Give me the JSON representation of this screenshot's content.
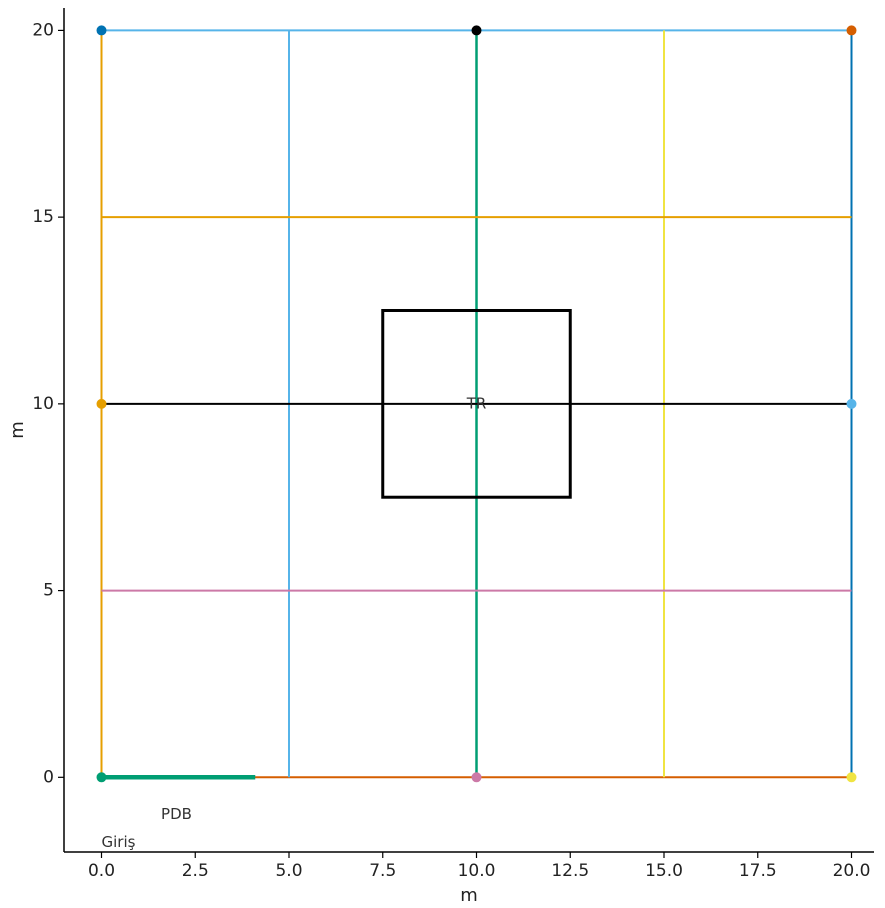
{
  "chart_data": {
    "type": "line",
    "title": "",
    "xlabel": "m",
    "ylabel": "m",
    "xlim": [
      -1.0,
      20.6
    ],
    "ylim": [
      -2.0,
      20.6
    ],
    "xticks": [
      "0.0",
      "2.5",
      "5.0",
      "7.5",
      "10.0",
      "12.5",
      "15.0",
      "17.5",
      "20.0"
    ],
    "yticks": [
      "0",
      "5",
      "10",
      "15",
      "20"
    ],
    "xtick_values": [
      0,
      2.5,
      5,
      7.5,
      10,
      12.5,
      15,
      17.5,
      20
    ],
    "ytick_values": [
      0,
      5,
      10,
      15,
      20
    ],
    "grid": false,
    "segments": [
      {
        "id": "top-line",
        "x": [
          0,
          20
        ],
        "y": [
          20,
          20
        ],
        "color": "#56B4E9",
        "width": 2
      },
      {
        "id": "left-line",
        "x": [
          0,
          0
        ],
        "y": [
          0,
          20
        ],
        "color": "#E69F00",
        "width": 2
      },
      {
        "id": "right-line",
        "x": [
          20,
          20
        ],
        "y": [
          0,
          20
        ],
        "color": "#0072B2",
        "width": 2
      },
      {
        "id": "bottom-line",
        "x": [
          0,
          20
        ],
        "y": [
          0,
          0
        ],
        "color": "#D55E00",
        "width": 2
      },
      {
        "id": "vertical-x5",
        "x": [
          5,
          5
        ],
        "y": [
          0,
          20
        ],
        "color": "#56B4E9",
        "width": 2
      },
      {
        "id": "vertical-x10",
        "x": [
          10,
          10
        ],
        "y": [
          0,
          20
        ],
        "color": "#009E73",
        "width": 2.5
      },
      {
        "id": "vertical-x15",
        "x": [
          15,
          15
        ],
        "y": [
          0,
          20
        ],
        "color": "#F0E442",
        "width": 2
      },
      {
        "id": "horizontal-y15",
        "x": [
          0,
          20
        ],
        "y": [
          15,
          15
        ],
        "color": "#E69F00",
        "width": 2
      },
      {
        "id": "horizontal-y10",
        "x": [
          0,
          20
        ],
        "y": [
          10,
          10
        ],
        "color": "#000000",
        "width": 2
      },
      {
        "id": "horizontal-y5",
        "x": [
          0,
          20
        ],
        "y": [
          5,
          5
        ],
        "color": "#CC79A7",
        "width": 2
      },
      {
        "id": "pdb-segment",
        "x": [
          0,
          4.1
        ],
        "y": [
          0,
          0
        ],
        "color": "#009E73",
        "width": 4.5
      }
    ],
    "rectangle": {
      "x0": 7.5,
      "y0": 7.5,
      "x1": 12.5,
      "y1": 12.5,
      "color": "#000000",
      "width": 3
    },
    "points": [
      {
        "id": "point-0-20",
        "x": 0,
        "y": 20,
        "color": "#0072B2"
      },
      {
        "id": "point-10-20",
        "x": 10,
        "y": 20,
        "color": "#000000"
      },
      {
        "id": "point-20-20",
        "x": 20,
        "y": 20,
        "color": "#D55E00"
      },
      {
        "id": "point-0-10",
        "x": 0,
        "y": 10,
        "color": "#E69F00"
      },
      {
        "id": "point-20-10",
        "x": 20,
        "y": 10,
        "color": "#56B4E9"
      },
      {
        "id": "point-0-0",
        "x": 0,
        "y": 0,
        "color": "#009E73"
      },
      {
        "id": "point-10-0",
        "x": 10,
        "y": 0,
        "color": "#CC79A7"
      },
      {
        "id": "point-20-0",
        "x": 20,
        "y": 0,
        "color": "#F0E442"
      }
    ],
    "annotations": [
      {
        "id": "annotation-tr",
        "text": "TR",
        "x": 10,
        "y": 10,
        "anchor": "middle"
      },
      {
        "id": "annotation-pdb",
        "text": "PDB",
        "x": 2.0,
        "y": -1.0,
        "anchor": "middle"
      },
      {
        "id": "annotation-giris",
        "text": "Giriş",
        "x": 0.0,
        "y": -1.75,
        "anchor": "start"
      }
    ]
  }
}
